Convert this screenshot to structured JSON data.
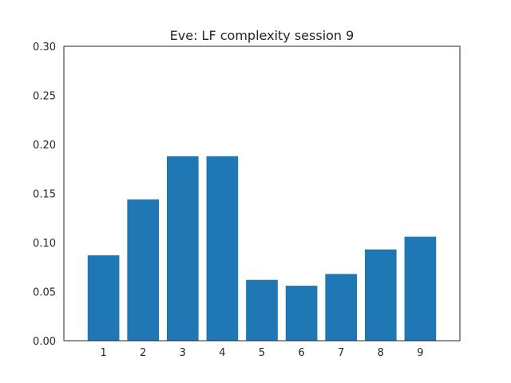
{
  "chart_data": {
    "type": "bar",
    "title": "Eve: LF complexity session 9",
    "xlabel": "",
    "ylabel": "",
    "categories": [
      "1",
      "2",
      "3",
      "4",
      "5",
      "6",
      "7",
      "8",
      "9"
    ],
    "values": [
      0.087,
      0.144,
      0.188,
      0.188,
      0.062,
      0.056,
      0.068,
      0.093,
      0.106
    ],
    "ylim": [
      0,
      0.3
    ],
    "yticks": [
      "0.00",
      "0.05",
      "0.10",
      "0.15",
      "0.20",
      "0.25",
      "0.30"
    ],
    "grid": false,
    "bar_color": "#1f77b4",
    "legend": "none"
  }
}
